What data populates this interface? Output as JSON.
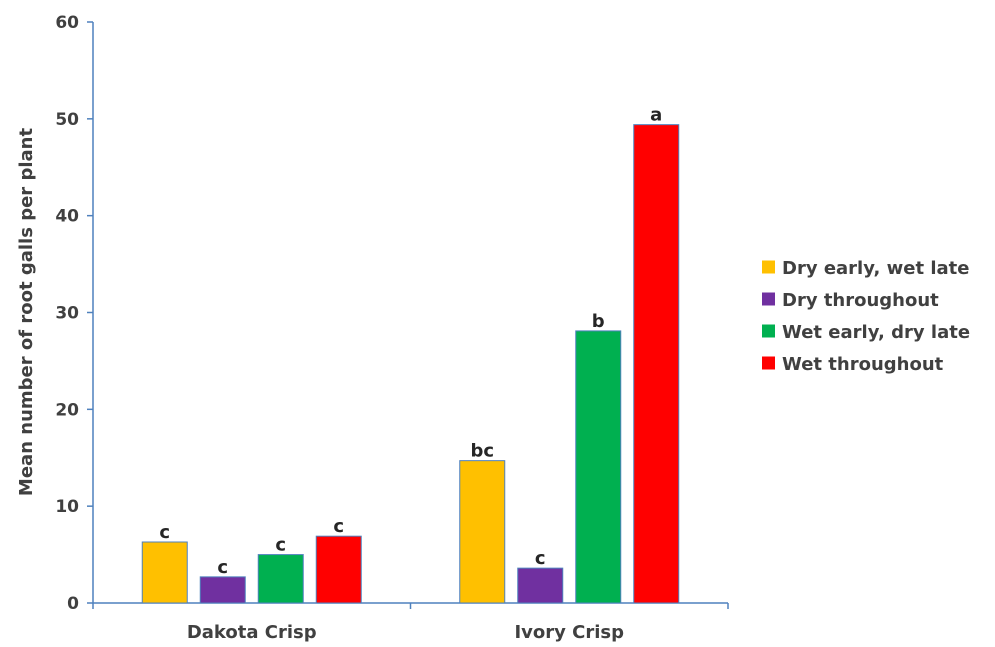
{
  "chart_data": {
    "type": "bar",
    "title": "",
    "xlabel": "",
    "ylabel": "Mean number of root galls per plant",
    "ylim": [
      0,
      60
    ],
    "yticks": [
      0,
      10,
      20,
      30,
      40,
      50,
      60
    ],
    "categories": [
      "Dakota Crisp",
      "Ivory Crisp"
    ],
    "series": [
      {
        "name": "Dry early, wet late",
        "color": "#FFC000",
        "values": [
          6.3,
          14.7
        ],
        "sig": [
          "c",
          "bc"
        ]
      },
      {
        "name": "Dry throughout",
        "color": "#7030A0",
        "values": [
          2.7,
          3.6
        ],
        "sig": [
          "c",
          "c"
        ]
      },
      {
        "name": "Wet early, dry late",
        "color": "#00B050",
        "values": [
          5.0,
          28.1
        ],
        "sig": [
          "c",
          "b"
        ]
      },
      {
        "name": "Wet throughout",
        "color": "#FF0000",
        "values": [
          6.9,
          49.4
        ],
        "sig": [
          "c",
          "a"
        ]
      }
    ],
    "legend": "right",
    "grid": false
  }
}
